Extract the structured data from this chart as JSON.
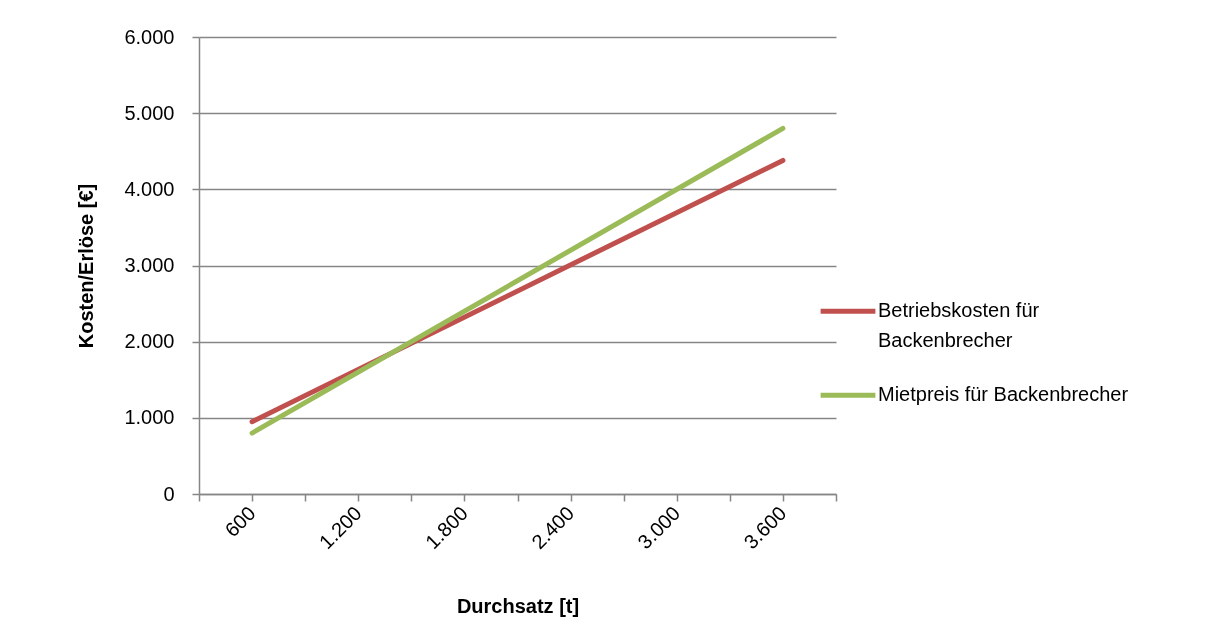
{
  "chart_data": {
    "type": "line",
    "xlabel": "Durchsatz [t]",
    "ylabel": "Kosten/Erlöse [€]",
    "x": [
      600,
      3600
    ],
    "series": [
      {
        "name": "Betriebskosten für Backenbrecher",
        "color": "#c0504d",
        "values": [
          950,
          4380
        ]
      },
      {
        "name": "Mietpreis für Backenbrecher",
        "color": "#9bbb59",
        "values": [
          800,
          4800
        ]
      }
    ],
    "xlim": [
      300,
      3900
    ],
    "xticks": [
      {
        "value": 300,
        "label": null
      },
      600,
      {
        "value": 900,
        "label": null
      },
      {
        "value": 1200,
        "label": "1.200"
      },
      {
        "value": 1500,
        "label": null
      },
      {
        "value": 1800,
        "label": "1.800"
      },
      {
        "value": 2100,
        "label": null
      },
      {
        "value": 2400,
        "label": "2.400"
      },
      {
        "value": 2700,
        "label": null
      },
      {
        "value": 3000,
        "label": "3.000"
      },
      {
        "value": 3300,
        "label": null
      },
      {
        "value": 3600,
        "label": "3.600"
      },
      {
        "value": 3900,
        "label": null
      }
    ],
    "ylim": [
      0,
      6000
    ],
    "yticks": [
      0,
      {
        "value": 1000,
        "label": "1.000"
      },
      {
        "value": 2000,
        "label": "2.000"
      },
      {
        "value": 3000,
        "label": "3.000"
      },
      {
        "value": 4000,
        "label": "4.000"
      },
      {
        "value": 5000,
        "label": "5.000"
      },
      {
        "value": 6000,
        "label": "6.000"
      }
    ],
    "grid": "y",
    "legend": "right",
    "line_style": "solid"
  }
}
